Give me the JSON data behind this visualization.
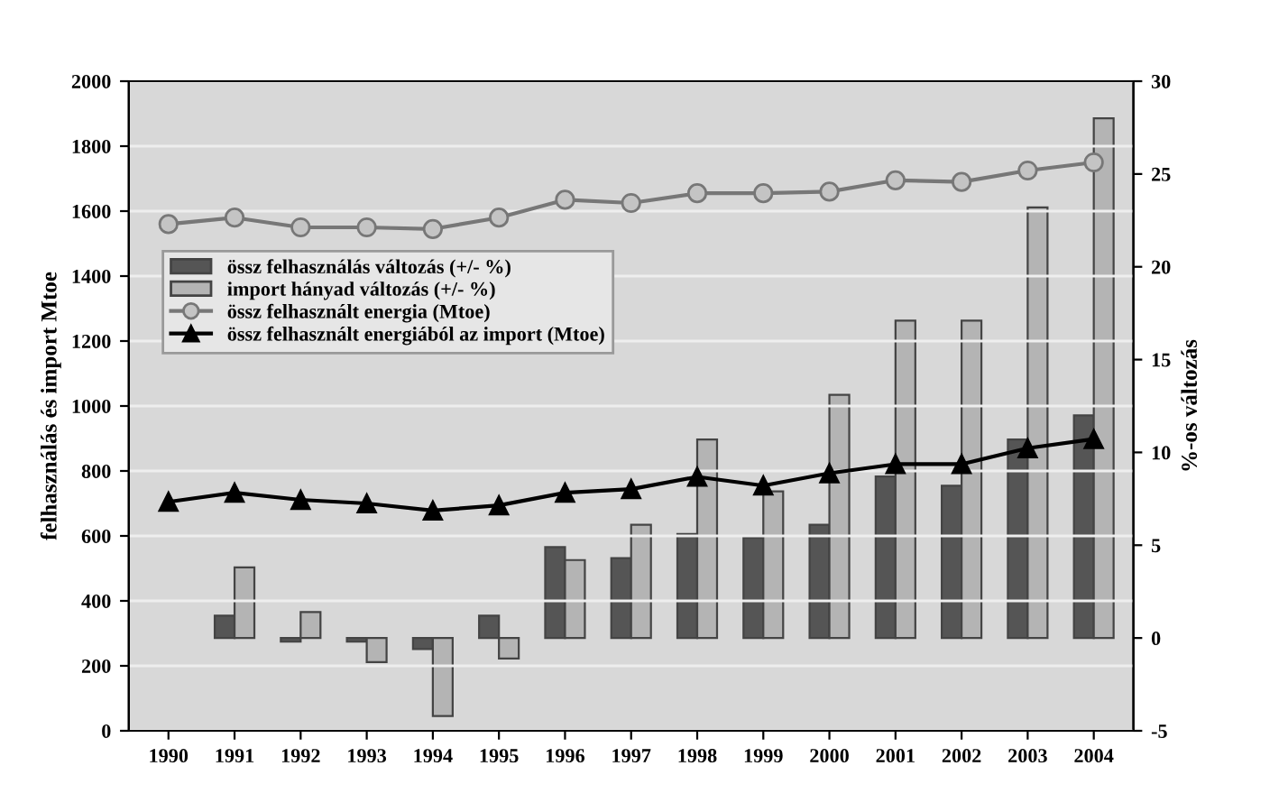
{
  "chart_data": {
    "type": "bar",
    "categories": [
      "1990",
      "1991",
      "1992",
      "1993",
      "1994",
      "1995",
      "1996",
      "1997",
      "1998",
      "1999",
      "2000",
      "2001",
      "2002",
      "2003",
      "2004"
    ],
    "ylabel": "felhasználás és import Mtoe",
    "y2label": "%-os változás",
    "ylim": [
      0,
      2000
    ],
    "yticks": [
      0,
      200,
      400,
      600,
      800,
      1000,
      1200,
      1400,
      1600,
      1800,
      2000
    ],
    "y2lim": [
      -5,
      30
    ],
    "y2ticks": [
      -5,
      0,
      5,
      10,
      15,
      20,
      25,
      30
    ],
    "grid": "y",
    "legend": "left",
    "series": [
      {
        "name": "össz felhasználás változás (+/- %)",
        "axis": "y2",
        "color": "#555555",
        "values": [
          null,
          1.2,
          -0.2,
          -0.2,
          -0.6,
          1.2,
          4.9,
          4.3,
          5.6,
          5.4,
          6.1,
          8.7,
          8.2,
          10.7,
          12.0
        ]
      },
      {
        "name": "import hányad változás (+/- %)",
        "axis": "y2",
        "color": "#b4b4b4",
        "values": [
          null,
          3.8,
          1.4,
          -1.3,
          -4.2,
          -1.1,
          4.2,
          6.1,
          10.7,
          7.9,
          13.1,
          17.1,
          17.1,
          23.2,
          28.0
        ]
      },
      {
        "name": "össz felhasznált energia (Mtoe)",
        "type": "line",
        "marker": "circle",
        "color": "#c4c4c4",
        "values": [
          1560,
          1580,
          1550,
          1550,
          1545,
          1580,
          1635,
          1625,
          1655,
          1655,
          1660,
          1695,
          1690,
          1725,
          1750
        ]
      },
      {
        "name": "össz felhasznált energiából az import (Mtoe)",
        "type": "line",
        "marker": "triangle",
        "color": "#000000",
        "values": [
          705,
          733,
          711,
          700,
          678,
          694,
          733,
          744,
          782,
          755,
          793,
          821,
          821,
          870,
          898
        ]
      }
    ]
  }
}
